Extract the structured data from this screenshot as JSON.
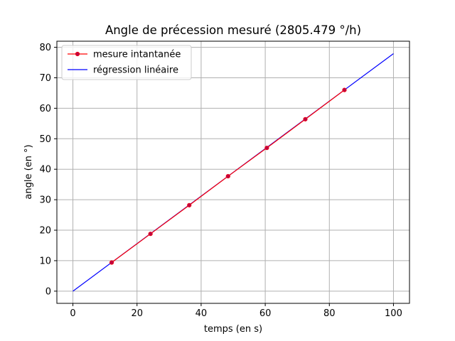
{
  "chart_data": {
    "type": "line",
    "title": "Angle de précession mesuré (2805.479 °/h)",
    "xlabel": "temps (en s)",
    "ylabel": "angle (en °)",
    "xlim": [
      -5,
      105
    ],
    "ylim": [
      -4,
      82
    ],
    "xticks": [
      0,
      20,
      40,
      60,
      80,
      100
    ],
    "yticks": [
      0,
      10,
      20,
      30,
      40,
      50,
      60,
      70,
      80
    ],
    "grid": true,
    "legend_position": "top-left",
    "series": [
      {
        "name": "mesure intantanée",
        "kind": "line-marker",
        "color": "#ff0000",
        "marker_color": "#c00040",
        "x": [
          12.1,
          24.2,
          36.3,
          48.4,
          60.5,
          72.5,
          84.7
        ],
        "y": [
          9.4,
          18.8,
          28.2,
          37.7,
          47.0,
          56.4,
          66.0
        ]
      },
      {
        "name": "régression linéaire",
        "kind": "line",
        "color": "#0000ff",
        "x": [
          0,
          100
        ],
        "y": [
          0,
          77.93
        ]
      }
    ]
  }
}
